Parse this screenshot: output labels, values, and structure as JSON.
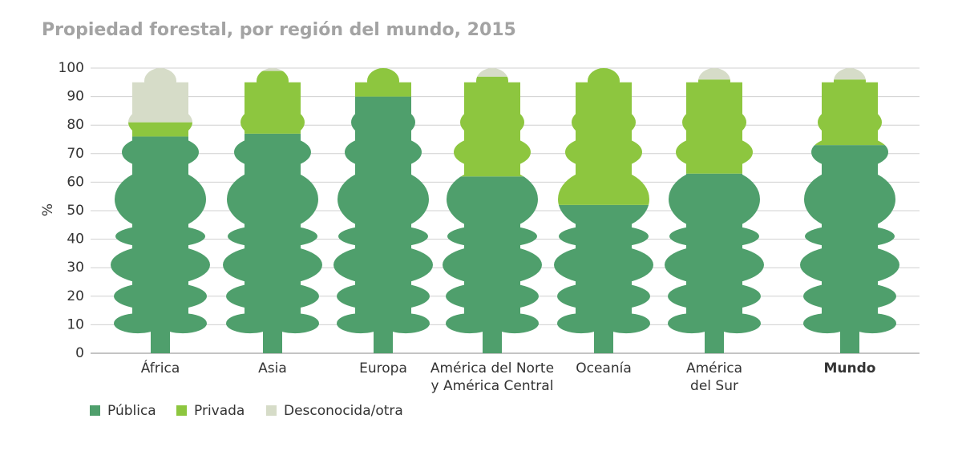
{
  "chart_data": {
    "type": "stacked_tree_bar",
    "title": "Propiedad forestal, por región del mundo, 2015",
    "y_label": "%",
    "categories": [
      "África",
      "Asia",
      "Europa",
      "América del Norte\ny América Central",
      "Oceanía",
      "América\ndel Sur",
      "Mundo"
    ],
    "series": [
      {
        "name": "Pública",
        "color": "#4f9f6c",
        "values": [
          76,
          77,
          90,
          62,
          52,
          63,
          73
        ]
      },
      {
        "name": "Privada",
        "color": "#8dc63f",
        "values": [
          5,
          22,
          10,
          35,
          48,
          33,
          23
        ]
      },
      {
        "name": "Desconocida/otra",
        "color": "#d6dcc8",
        "values": [
          19,
          1,
          0,
          3,
          0,
          4,
          4
        ]
      }
    ],
    "ylim": [
      0,
      100
    ],
    "yticks": [
      0,
      10,
      20,
      30,
      40,
      50,
      60,
      70,
      80,
      90,
      100
    ],
    "grid": true
  }
}
